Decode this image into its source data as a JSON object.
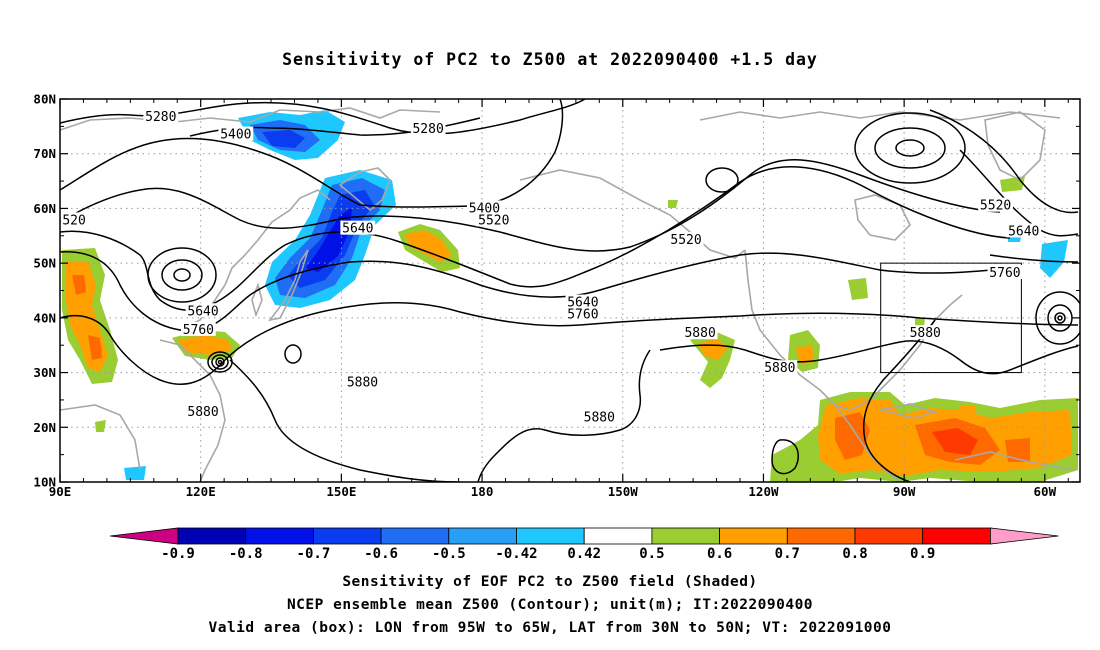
{
  "title": "Sensitivity of PC2 to Z500 at 2022090400 +1.5 day",
  "map": {
    "lon_range": [
      90,
      307.5
    ],
    "lat_range": [
      10,
      80
    ],
    "lat_ticks": [
      {
        "value": 80,
        "label": "80N"
      },
      {
        "value": 70,
        "label": "70N"
      },
      {
        "value": 60,
        "label": "60N"
      },
      {
        "value": 50,
        "label": "50N"
      },
      {
        "value": 40,
        "label": "40N"
      },
      {
        "value": 30,
        "label": "30N"
      },
      {
        "value": 20,
        "label": "20N"
      },
      {
        "value": 10,
        "label": "10N"
      }
    ],
    "lon_ticks": [
      {
        "value": 90,
        "label": "90E"
      },
      {
        "value": 120,
        "label": "120E"
      },
      {
        "value": 150,
        "label": "150E"
      },
      {
        "value": 180,
        "label": "180"
      },
      {
        "value": 210,
        "label": "150W"
      },
      {
        "value": 240,
        "label": "120W"
      },
      {
        "value": 270,
        "label": "90W"
      },
      {
        "value": 300,
        "label": "60W"
      }
    ],
    "valid_box": {
      "lon": [
        265,
        295
      ],
      "lat": [
        30,
        50
      ]
    },
    "contour_labels": [
      {
        "text": "5280",
        "lon": 111.5,
        "lat": 76.7
      },
      {
        "text": "5400",
        "lon": 127.5,
        "lat": 73.5
      },
      {
        "text": "5280",
        "lon": 168.5,
        "lat": 74.5
      },
      {
        "text": "5400",
        "lon": 180.5,
        "lat": 60.0
      },
      {
        "text": "5520",
        "lon": 182.5,
        "lat": 57.8
      },
      {
        "text": "5640",
        "lon": 153.5,
        "lat": 56.3
      },
      {
        "text": "5520",
        "lon": 223.5,
        "lat": 54.2
      },
      {
        "text": "520",
        "lon": 93.0,
        "lat": 57.8
      },
      {
        "text": "5640",
        "lon": 120.5,
        "lat": 41.2
      },
      {
        "text": "5760",
        "lon": 119.5,
        "lat": 37.8
      },
      {
        "text": "5640",
        "lon": 201.5,
        "lat": 42.8
      },
      {
        "text": "5760",
        "lon": 201.5,
        "lat": 40.6
      },
      {
        "text": "5880",
        "lon": 226.5,
        "lat": 37.2
      },
      {
        "text": "5880",
        "lon": 243.5,
        "lat": 30.8
      },
      {
        "text": "5880",
        "lon": 274.5,
        "lat": 37.2
      },
      {
        "text": "5880",
        "lon": 154.5,
        "lat": 28.2
      },
      {
        "text": "5880",
        "lon": 120.5,
        "lat": 22.8
      },
      {
        "text": "5880",
        "lon": 205.0,
        "lat": 21.8
      },
      {
        "text": "5520",
        "lon": 289.5,
        "lat": 60.5
      },
      {
        "text": "5640",
        "lon": 295.5,
        "lat": 55.8
      },
      {
        "text": "5760",
        "lon": 291.5,
        "lat": 48.2
      }
    ]
  },
  "colorbar": {
    "labels": [
      "-0.9",
      "-0.8",
      "-0.7",
      "-0.6",
      "-0.5",
      "-0.42",
      "0.42",
      "0.5",
      "0.6",
      "0.7",
      "0.8",
      "0.9"
    ],
    "colors": {
      "below": "#cc0080",
      "segments": [
        "#0000b4",
        "#0010e6",
        "#0a3cf0",
        "#1f6ef5",
        "#29a0f5",
        "#1ec8ff",
        "#ffffff",
        "#9acd32",
        "#ffa000",
        "#ff6a00",
        "#ff3a00",
        "#ff0000"
      ],
      "above": "#ff9cc8"
    }
  },
  "captions": {
    "line1": "Sensitivity of EOF PC2 to Z500 field (Shaded)",
    "line2": "NCEP ensemble mean Z500 (Contour); unit(m); IT:2022090400",
    "line3": "Valid area (box): LON from 95W to 65W, LAT from 30N to 50N; VT: 2022091000"
  }
}
